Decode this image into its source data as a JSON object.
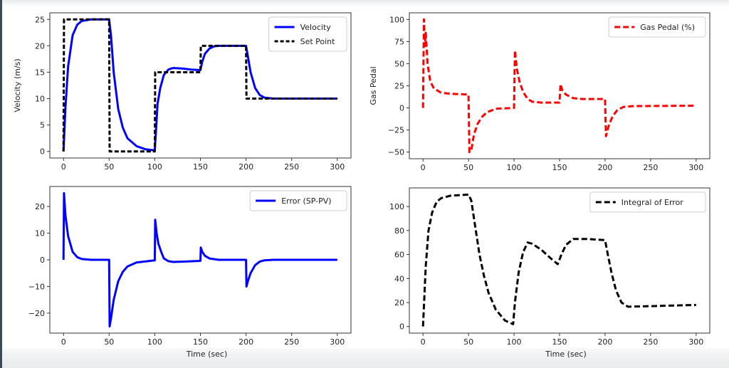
{
  "chart_data": [
    {
      "type": "line",
      "ylabel": "Velocity (m/s)",
      "xlabel": "",
      "xlim": [
        -15,
        315
      ],
      "ylim": [
        -1.25,
        26.25
      ],
      "xticks": [
        0,
        50,
        100,
        150,
        200,
        250,
        300
      ],
      "yticks": [
        0,
        5,
        10,
        15,
        20,
        25
      ],
      "legend_position": "top-right",
      "series": [
        {
          "name": "Velocity",
          "color": "#0000ff",
          "style": "solid",
          "points": [
            [
              0,
              0
            ],
            [
              2,
              8
            ],
            [
              5,
              16
            ],
            [
              10,
              22
            ],
            [
              15,
              24
            ],
            [
              20,
              24.7
            ],
            [
              30,
              25
            ],
            [
              50,
              25
            ],
            [
              52,
              22
            ],
            [
              55,
              15
            ],
            [
              60,
              8
            ],
            [
              65,
              4.5
            ],
            [
              70,
              2.5
            ],
            [
              80,
              1
            ],
            [
              90,
              0.4
            ],
            [
              100,
              0.2
            ],
            [
              101,
              3
            ],
            [
              103,
              9
            ],
            [
              106,
              12
            ],
            [
              110,
              14.5
            ],
            [
              115,
              15.5
            ],
            [
              120,
              15.8
            ],
            [
              130,
              15.7
            ],
            [
              140,
              15.5
            ],
            [
              150,
              15.4
            ],
            [
              152,
              17
            ],
            [
              155,
              18.5
            ],
            [
              160,
              19.5
            ],
            [
              165,
              19.9
            ],
            [
              170,
              20
            ],
            [
              200,
              20
            ],
            [
              202,
              18
            ],
            [
              205,
              15
            ],
            [
              210,
              12
            ],
            [
              215,
              10.7
            ],
            [
              220,
              10.2
            ],
            [
              230,
              10
            ],
            [
              300,
              10
            ]
          ]
        },
        {
          "name": "Set Point",
          "color": "#000000",
          "style": "dashed",
          "points": [
            [
              0,
              0
            ],
            [
              0.5,
              25
            ],
            [
              50,
              25
            ],
            [
              50.5,
              0
            ],
            [
              100,
              0
            ],
            [
              100.5,
              15
            ],
            [
              150,
              15
            ],
            [
              150.5,
              20
            ],
            [
              200,
              20
            ],
            [
              200.5,
              10
            ],
            [
              300,
              10
            ]
          ]
        }
      ]
    },
    {
      "type": "line",
      "ylabel": "Gas Pedal",
      "xlabel": "",
      "xlim": [
        -15,
        315
      ],
      "ylim": [
        -57.5,
        107.5
      ],
      "xticks": [
        0,
        50,
        100,
        150,
        200,
        250,
        300
      ],
      "yticks": [
        -50,
        -25,
        0,
        25,
        50,
        75,
        100
      ],
      "legend_position": "top-right",
      "series": [
        {
          "name": "Gas Pedal (%)",
          "color": "#ff0000",
          "style": "dashed",
          "points": [
            [
              0,
              0
            ],
            [
              1,
              100
            ],
            [
              2,
              70
            ],
            [
              3,
              85
            ],
            [
              5,
              50
            ],
            [
              8,
              30
            ],
            [
              12,
              22
            ],
            [
              20,
              17
            ],
            [
              30,
              16
            ],
            [
              50,
              15
            ],
            [
              51,
              -50
            ],
            [
              53,
              -48
            ],
            [
              56,
              -30
            ],
            [
              60,
              -18
            ],
            [
              65,
              -10
            ],
            [
              70,
              -5
            ],
            [
              80,
              -1
            ],
            [
              100,
              0
            ],
            [
              101,
              65
            ],
            [
              103,
              45
            ],
            [
              106,
              30
            ],
            [
              110,
              18
            ],
            [
              115,
              10
            ],
            [
              120,
              7
            ],
            [
              130,
              6
            ],
            [
              150,
              6
            ],
            [
              151,
              27
            ],
            [
              153,
              20
            ],
            [
              157,
              15
            ],
            [
              165,
              11
            ],
            [
              175,
              10
            ],
            [
              200,
              10
            ],
            [
              201,
              -32
            ],
            [
              204,
              -20
            ],
            [
              208,
              -10
            ],
            [
              213,
              -3
            ],
            [
              220,
              1
            ],
            [
              230,
              2
            ],
            [
              300,
              2.5
            ]
          ]
        }
      ]
    },
    {
      "type": "line",
      "ylabel": "",
      "xlabel": "Time (sec)",
      "xlim": [
        -15,
        315
      ],
      "ylim": [
        -27.5,
        27.5
      ],
      "xticks": [
        0,
        50,
        100,
        150,
        200,
        250,
        300
      ],
      "yticks": [
        -20,
        -10,
        0,
        10,
        20
      ],
      "legend_position": "top-right",
      "series": [
        {
          "name": "Error (SP-PV)",
          "color": "#0000ff",
          "style": "solid",
          "points": [
            [
              0,
              0
            ],
            [
              0.5,
              25
            ],
            [
              2,
              17
            ],
            [
              5,
              9
            ],
            [
              10,
              3
            ],
            [
              15,
              1
            ],
            [
              20,
              0.3
            ],
            [
              30,
              0
            ],
            [
              50,
              0
            ],
            [
              50.5,
              -25
            ],
            [
              52,
              -22
            ],
            [
              55,
              -15
            ],
            [
              60,
              -8
            ],
            [
              65,
              -4.5
            ],
            [
              70,
              -2.5
            ],
            [
              80,
              -1
            ],
            [
              100,
              -0.2
            ],
            [
              100.5,
              15
            ],
            [
              102,
              10
            ],
            [
              104,
              6
            ],
            [
              107,
              3
            ],
            [
              110,
              0.5
            ],
            [
              115,
              -0.5
            ],
            [
              120,
              -0.8
            ],
            [
              130,
              -0.7
            ],
            [
              150,
              -0.4
            ],
            [
              150.5,
              4.6
            ],
            [
              152,
              3
            ],
            [
              155,
              1.5
            ],
            [
              160,
              0.5
            ],
            [
              170,
              0
            ],
            [
              200,
              0
            ],
            [
              200.5,
              -10
            ],
            [
              202,
              -8
            ],
            [
              205,
              -5
            ],
            [
              210,
              -2
            ],
            [
              215,
              -0.7
            ],
            [
              220,
              -0.2
            ],
            [
              230,
              0
            ],
            [
              300,
              0
            ]
          ]
        }
      ]
    },
    {
      "type": "line",
      "ylabel": "",
      "xlabel": "Time (sec)",
      "xlim": [
        -15,
        315
      ],
      "ylim": [
        -5.5,
        115.5
      ],
      "xticks": [
        0,
        50,
        100,
        150,
        200,
        250,
        300
      ],
      "yticks": [
        0,
        20,
        40,
        60,
        80,
        100
      ],
      "legend_position": "top-right",
      "series": [
        {
          "name": "Integral of Error",
          "color": "#000000",
          "style": "dashed",
          "points": [
            [
              0,
              0
            ],
            [
              3,
              50
            ],
            [
              6,
              80
            ],
            [
              10,
              95
            ],
            [
              15,
              104
            ],
            [
              20,
              107
            ],
            [
              30,
              109
            ],
            [
              50,
              110
            ],
            [
              53,
              105
            ],
            [
              57,
              85
            ],
            [
              62,
              60
            ],
            [
              67,
              42
            ],
            [
              72,
              28
            ],
            [
              80,
              14
            ],
            [
              90,
              5
            ],
            [
              99,
              2
            ],
            [
              101,
              20
            ],
            [
              105,
              45
            ],
            [
              110,
              62
            ],
            [
              115,
              70
            ],
            [
              120,
              69
            ],
            [
              130,
              64
            ],
            [
              140,
              57
            ],
            [
              148,
              52
            ],
            [
              152,
              60
            ],
            [
              157,
              68
            ],
            [
              165,
              73
            ],
            [
              180,
              73
            ],
            [
              200,
              72
            ],
            [
              203,
              60
            ],
            [
              207,
              45
            ],
            [
              212,
              30
            ],
            [
              218,
              20
            ],
            [
              225,
              16.5
            ],
            [
              250,
              17
            ],
            [
              300,
              18
            ]
          ]
        }
      ]
    }
  ]
}
